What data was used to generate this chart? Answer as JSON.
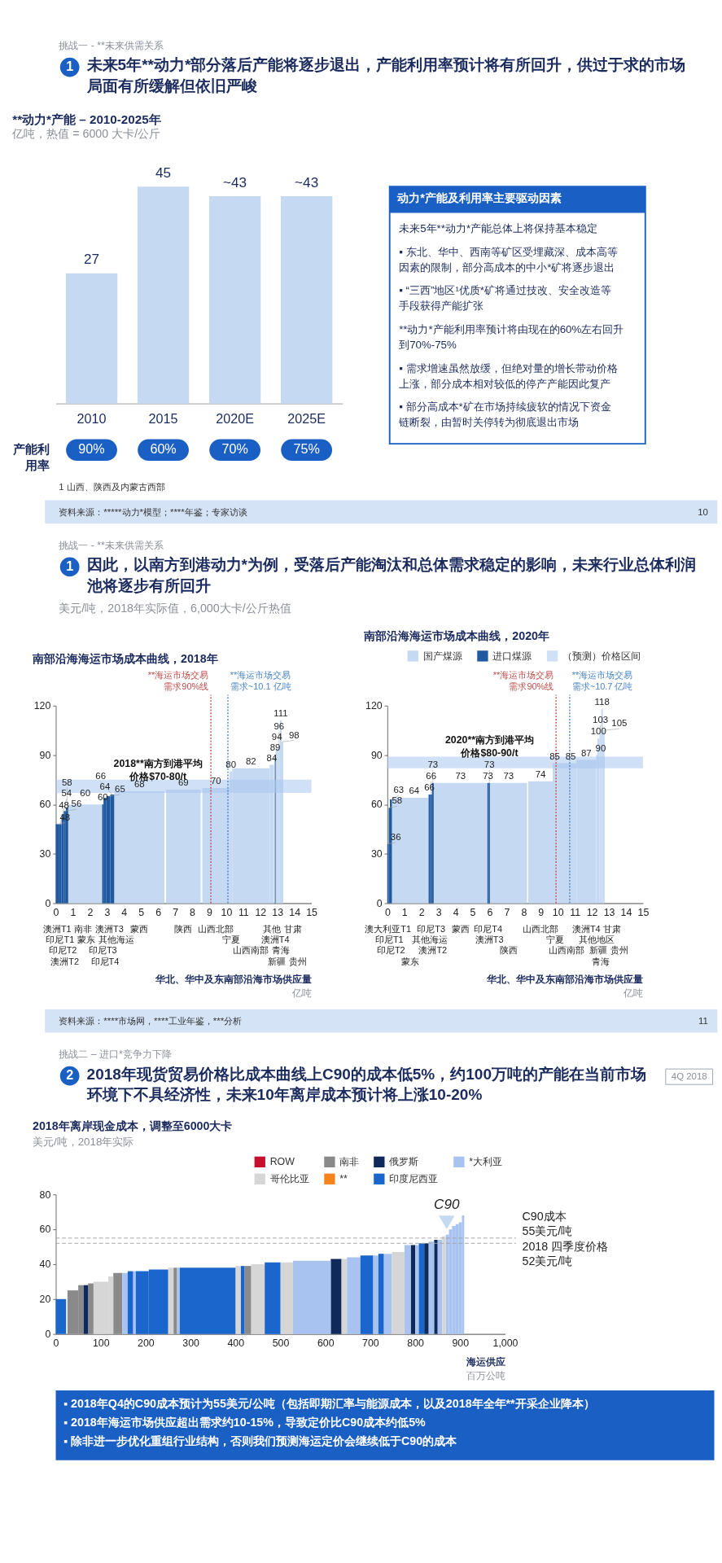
{
  "chart_data": [
    {
      "type": "other",
      "title": "未来5年**动力*部分落后产能将逐步退出，产能利用率预计将有所回升，供过于求的市场局面有所缓解但依旧严峻",
      "annotations": [
        "挑战一 - **未来供需关系",
        "1"
      ]
    },
    {
      "type": "bar",
      "title": "**动力*产能 – 2010-2025年",
      "ylabel": "亿吨，热值 = 6000 大卡/公斤",
      "categories": [
        "2010",
        "2015",
        "2020E",
        "2025E"
      ],
      "values": [
        27,
        45,
        43,
        43
      ],
      "value_labels": [
        "27",
        "45",
        "~43",
        "~43"
      ],
      "color": "#c6d9f3",
      "tick_labels": "x"
    },
    {
      "type": "other",
      "title": "产能利用率",
      "annotations": [
        "90%",
        "60%",
        "70%",
        "75%"
      ]
    },
    {
      "type": "other",
      "title": "动力*产能及利用率主要驱动因素",
      "annotations": [
        "未来5年**动力*产能总体上将保持基本稳定",
        "▪ 东北、华中、西南等矿区受埋藏深、成本高等因素的限制，部分高成本的中小*矿将逐步退出",
        "▪ “三西”地区¹优质*矿将通过技改、安全改造等手段获得产能扩张",
        "**动力*产能利用率预计将由现在的60%左右回升到70%-75%",
        "▪ 需求增速虽然放缓，但绝对量的增长带动价格上涨，部分成本相对较低的停产产能因此复产",
        "▪ 部分高成本*矿在市场持续疲软的情况下资金链断裂，由暂时关停转为彻底退出市场"
      ]
    },
    {
      "type": "other",
      "annotations": [
        "1 山西、陕西及内蒙古西部",
        "资料来源：*****动力*模型；****年鉴；专家访谈",
        "10"
      ]
    },
    {
      "type": "other",
      "title": "因此，以南方到港动力*为例，受落后产能淘汰和总体需求稳定的影响，未来行业总体利润池将逐步有所回升",
      "subtitle": "美元/吨，2018年实际值，6,000大卡/公斤热值",
      "annotations": [
        "挑战一 - **未来供需关系",
        "1"
      ]
    },
    {
      "type": "histogram",
      "title": "南部沿海海运市场成本曲线，2018年",
      "xlabel": "华北、华中及东南部沿海市场供应量",
      "xlim": [
        0,
        15
      ],
      "xticks": [
        0,
        1,
        2,
        3,
        4,
        5,
        6,
        7,
        8,
        9,
        10,
        11,
        12,
        13,
        14,
        15
      ],
      "ylim": [
        0,
        120
      ],
      "yticks": [
        0,
        30,
        60,
        90,
        120
      ],
      "bins": [
        0,
        0.17,
        0.34,
        0.47,
        0.59,
        0.73,
        2.72,
        2.8,
        2.97,
        3.2,
        3.43,
        6.38,
        6.47,
        8.5,
        8.6,
        10.2,
        10.35,
        12.55,
        12.8,
        12.85,
        12.9,
        13.05,
        13.15,
        13.25,
        13.35
      ],
      "series": [
        {
          "color": "#c6d9f3",
          "values": [
            null,
            null,
            null,
            null,
            null,
            60,
            null,
            null,
            null,
            null,
            68,
            null,
            69,
            null,
            70,
            80,
            82,
            84,
            null,
            null,
            94,
            96,
            111,
            98
          ]
        },
        {
          "color": "#1f5aa0",
          "values": [
            48,
            48,
            54,
            56,
            58,
            null,
            60,
            64,
            65,
            66,
            null,
            null,
            null,
            null,
            null,
            null,
            null,
            null,
            null,
            89,
            null,
            null,
            null,
            null
          ]
        }
      ],
      "data_labels": true,
      "ref_lines": [
        {
          "axis": "x",
          "value": 9.1,
          "label": "**海运市场交易需求90%线",
          "color": "#c0504d",
          "line_style": "dotted"
        },
        {
          "axis": "x",
          "value": 10.1,
          "label": "**海运市场交易需求~10.1 亿吨",
          "color": "#4a86c5",
          "line_style": "dotted"
        }
      ],
      "bands": [
        {
          "axis": "y",
          "from": 67,
          "to": 75,
          "color": "#a9c7ee"
        }
      ],
      "annotations": [
        "亿吨",
        "2018**南方到港平均价格$70-80/t",
        "澳洲T1",
        "印尼T1",
        "印尼T2",
        "澳洲T2",
        "南非",
        "蒙东",
        "印尼T3",
        "印尼T4",
        "澳洲T3",
        "其他海运",
        "蒙西",
        "陕西",
        "山西北部",
        "宁夏",
        "山西南部",
        "其他",
        "澳洲T4",
        "新疆",
        "青海",
        "甘肃",
        "贵州"
      ]
    },
    {
      "type": "histogram",
      "title": "南部沿海海运市场成本曲线，2020年",
      "xlabel": "华北、华中及东南部沿海市场供应量",
      "xlim": [
        0,
        15
      ],
      "xticks": [
        0,
        1,
        2,
        3,
        4,
        5,
        6,
        7,
        8,
        9,
        10,
        11,
        12,
        13,
        14,
        15
      ],
      "ylim": [
        0,
        120
      ],
      "yticks": [
        0,
        30,
        60,
        90,
        120
      ],
      "bins": [
        0,
        0.08,
        0.15,
        0.27,
        2.42,
        2.52,
        2.62,
        2.72,
        5.87,
        5.95,
        6.02,
        8.2,
        8.27,
        9.7,
        9.95,
        11.1,
        12.25,
        12.33,
        12.45,
        12.55,
        12.65,
        12.75
      ],
      "series": [
        {
          "name": "国产煤源",
          "color": "#c6d9f3",
          "values": [
            null,
            null,
            null,
            64,
            null,
            null,
            null,
            73,
            null,
            null,
            73,
            null,
            74,
            85,
            85,
            87,
            90,
            100,
            103,
            118,
            105
          ]
        },
        {
          "name": "进口煤源",
          "color": "#1f5aa0",
          "values": [
            36,
            58,
            63,
            null,
            66,
            66,
            73,
            null,
            73,
            73,
            null,
            null,
            null,
            null,
            null,
            null,
            null,
            null,
            null,
            null,
            null
          ]
        }
      ],
      "data_labels": true,
      "legend": "top right",
      "ref_lines": [
        {
          "axis": "x",
          "value": 9.9,
          "label": "**海运市场交易需求90%线",
          "color": "#c0504d",
          "line_style": "dotted"
        },
        {
          "axis": "x",
          "value": 10.7,
          "label": "**海运市场交易需求~10.7 亿吨",
          "color": "#4a86c5",
          "line_style": "dotted"
        }
      ],
      "bands": [
        {
          "axis": "y",
          "from": 82,
          "to": 89,
          "color": "#a9c7ee",
          "label": "（预测）价格区间"
        }
      ],
      "annotations": [
        "亿吨",
        "2020**南方到港平均价格$80-90/t",
        "澳大利亚T1",
        "印尼T1",
        "印尼T2",
        "蒙东",
        "其他海运",
        "印尼T3",
        "澳洲T2",
        "蒙西",
        "印尼T4",
        "澳洲T3",
        "陕西",
        "山西北部",
        "宁夏",
        "山西南部",
        "澳洲T4",
        "其他地区",
        "新疆",
        "青海",
        "甘肃",
        "贵州"
      ]
    },
    {
      "type": "other",
      "annotations": [
        "资料来源：****市场网，****工业年鉴，***分析",
        "11"
      ]
    },
    {
      "type": "other",
      "title": "2018年现货贸易价格比成本曲线上C90的成本低5%，约100万吨的产能在当前市场环境下不具经济性，未来10年离岸成本预计将上涨10-20%",
      "annotations": [
        "挑战二 – 进口*竞争力下降",
        "2",
        "4Q 2018"
      ]
    },
    {
      "type": "histogram",
      "title": "2018年离岸现金成本，调整至6000大卡",
      "ylabel": "美元/吨，2018年实际",
      "xlabel": "海运供应",
      "xlim": [
        0,
        1000
      ],
      "xticks": [
        0,
        100,
        200,
        300,
        400,
        500,
        600,
        700,
        800,
        900,
        {
          "value": 1000,
          "label": "1,000"
        }
      ],
      "ylim": [
        0,
        80
      ],
      "yticks": [
        0,
        20,
        40,
        60,
        80
      ],
      "legend": "top right",
      "bins": [
        0,
        23,
        26,
        50,
        62,
        72,
        84,
        117,
        128,
        148,
        160,
        172,
        178,
        207,
        250,
        262,
        270,
        276,
        400,
        412,
        420,
        435,
        465,
        500,
        528,
        612,
        636,
        648,
        678,
        706,
        718,
        730,
        748,
        776,
        790,
        800,
        808,
        820,
        830,
        842,
        850,
        860,
        868,
        875,
        882,
        890,
        897,
        904,
        909
      ],
      "series": [
        {
          "name": "ROW",
          "color": "#c8102e",
          "type": "other"
        },
        {
          "name": "南非",
          "color": "#8a8a8a",
          "values": [
            null,
            null,
            25,
            28,
            null,
            29,
            null,
            null,
            35,
            null,
            null,
            null,
            null,
            null,
            null,
            38,
            null,
            null,
            null,
            null,
            39,
            null,
            null,
            null,
            null,
            null,
            null,
            null,
            null,
            null,
            null,
            null,
            null,
            null,
            null,
            null,
            null,
            null,
            null,
            null,
            null,
            null,
            null,
            null,
            null,
            null,
            null,
            null
          ]
        },
        {
          "name": "俄罗斯",
          "color": "#0f2a5a",
          "values": [
            null,
            null,
            null,
            null,
            28,
            null,
            null,
            null,
            null,
            null,
            null,
            null,
            null,
            null,
            null,
            null,
            null,
            null,
            null,
            null,
            null,
            null,
            null,
            null,
            null,
            43,
            null,
            null,
            null,
            null,
            null,
            null,
            null,
            null,
            51,
            null,
            null,
            52,
            null,
            54,
            null,
            null,
            null,
            null,
            null,
            null,
            null,
            null
          ]
        },
        {
          "name": "*大利亚",
          "color": "#a8c3f0",
          "values": [
            null,
            null,
            null,
            null,
            null,
            null,
            null,
            null,
            null,
            35,
            null,
            36,
            null,
            null,
            null,
            null,
            38,
            null,
            null,
            null,
            null,
            null,
            null,
            null,
            42,
            null,
            null,
            44,
            null,
            45,
            null,
            46,
            null,
            51,
            null,
            51,
            null,
            null,
            53,
            null,
            54,
            null,
            57,
            60,
            62,
            63,
            64,
            68
          ]
        },
        {
          "name": "哥伦比亚",
          "color": "#d6d6d6",
          "values": [
            null,
            null,
            null,
            null,
            null,
            null,
            30,
            33,
            null,
            null,
            null,
            null,
            null,
            null,
            38,
            null,
            null,
            null,
            39,
            null,
            null,
            40,
            null,
            41,
            null,
            null,
            43,
            null,
            null,
            null,
            null,
            null,
            47,
            null,
            null,
            null,
            null,
            null,
            null,
            null,
            null,
            56,
            null,
            null,
            null,
            null,
            null,
            null
          ]
        },
        {
          "name": "**",
          "color": "#f5841f",
          "type": "other"
        },
        {
          "name": "印度尼西亚",
          "color": "#1a66cc",
          "values": [
            20,
            null,
            null,
            null,
            null,
            null,
            null,
            null,
            null,
            null,
            36,
            null,
            36,
            37,
            null,
            null,
            null,
            38,
            null,
            39,
            null,
            null,
            41,
            null,
            null,
            null,
            null,
            null,
            45,
            null,
            46,
            null,
            null,
            null,
            null,
            null,
            52,
            null,
            null,
            null,
            null,
            null,
            null,
            null,
            null,
            null,
            null,
            null
          ]
        },
        {
          "name": "C90",
          "type": "scatter",
          "x": [
            870
          ],
          "values": [
            64
          ],
          "color": "#c6d9f3",
          "marker": "triangle"
        }
      ],
      "ref_lines": [
        {
          "axis": "y",
          "value": 55,
          "label": "C90成本 55美元/吨",
          "color": "#a3a3a3",
          "line_style": "dashed"
        },
        {
          "axis": "y",
          "value": 52,
          "label": "2018 四季度价格 52美元/吨",
          "color": "#a3a3a3",
          "line_style": "dashed"
        }
      ],
      "annotations": [
        "百万公吨"
      ]
    },
    {
      "type": "other",
      "annotations": [
        "▪ 2018年Q4的C90成本预计为55美元/公吨（包括即期汇率与能源成本，以及2018年全年**开采企业降本）",
        "▪ 2018年海运市场供应超出需求约10-15%，导致定价比C90成本约低5%",
        "▪ 除非进一步优化重组行业结构，否则我们预测海运定价会继续低于C90的成本"
      ]
    }
  ]
}
